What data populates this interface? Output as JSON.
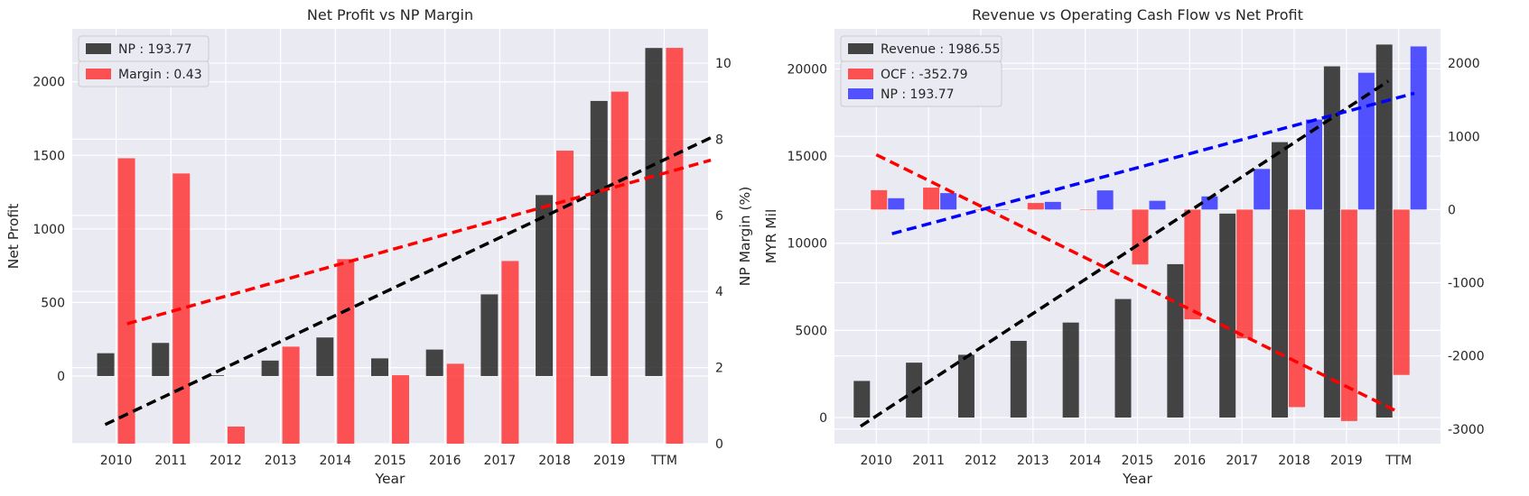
{
  "chart_data": [
    {
      "type": "bar",
      "title": "Net Profit vs NP Margin",
      "xlabel": "Year",
      "ylabel": "Net Profit",
      "ylabel_right": "NP Margin (%)",
      "categories": [
        "2010",
        "2011",
        "2012",
        "2013",
        "2014",
        "2015",
        "2016",
        "2017",
        "2018",
        "2019",
        "TTM"
      ],
      "ylim": [
        -460,
        2360
      ],
      "ylim_right": [
        0,
        10.9
      ],
      "yticks": [
        0,
        500,
        1000,
        1500,
        2000
      ],
      "yticks_right": [
        0,
        2,
        4,
        6,
        8,
        10
      ],
      "grid": true,
      "legend": "top-left",
      "series": [
        {
          "name": "NP : 193.77",
          "axis": "left",
          "color": "#262626",
          "values": [
            155,
            225,
            5,
            105,
            262,
            120,
            180,
            555,
            1230,
            1870,
            2230
          ]
        },
        {
          "name": "Margin : 0.43",
          "axis": "right",
          "color": "#ff2a2a",
          "values": [
            7.5,
            7.1,
            0.45,
            2.55,
            4.85,
            1.8,
            2.1,
            4.8,
            7.7,
            9.25,
            10.4
          ]
        }
      ],
      "trendlines": [
        {
          "axis": "left",
          "color": "#000000",
          "from": [
            -0.2,
            -330
          ],
          "to": [
            10.85,
            1620
          ]
        },
        {
          "axis": "right",
          "color": "#ff0000",
          "from": [
            0.2,
            3.15
          ],
          "to": [
            10.85,
            7.45
          ]
        }
      ]
    },
    {
      "type": "bar",
      "title": "Revenue vs Operating Cash Flow vs Net Profit",
      "xlabel": "Year",
      "ylabel": "MYR Mil",
      "categories": [
        "2010",
        "2011",
        "2012",
        "2013",
        "2014",
        "2015",
        "2016",
        "2017",
        "2018",
        "2019",
        "TTM"
      ],
      "ylim": [
        -1500,
        22300
      ],
      "ylim_right": [
        -3200,
        2470
      ],
      "yticks": [
        0,
        5000,
        10000,
        15000,
        20000
      ],
      "yticks_right": [
        -3000,
        -2000,
        -1000,
        0,
        1000,
        2000
      ],
      "grid": true,
      "legend": "top-left",
      "series": [
        {
          "name": "Revenue : 1986.55",
          "axis": "left",
          "color": "#262626",
          "values": [
            2100,
            3150,
            3600,
            4400,
            5450,
            6800,
            8800,
            11700,
            15800,
            20150,
            21400
          ]
        },
        {
          "name": "OCF : -352.79",
          "axis": "right",
          "color": "#ff2a2a",
          "values": [
            265,
            300,
            0,
            90,
            0,
            -750,
            -1500,
            -1760,
            -2700,
            -2890,
            -2260
          ]
        },
        {
          "name": "NP : 193.77",
          "axis": "right",
          "color": "#2a2aff",
          "values": [
            155,
            225,
            5,
            105,
            262,
            120,
            180,
            555,
            1230,
            1870,
            2230
          ]
        }
      ],
      "trendlines": [
        {
          "axis": "left",
          "color": "#000000",
          "from": [
            -0.3,
            -500
          ],
          "to": [
            9.8,
            19300
          ]
        },
        {
          "axis": "right",
          "color": "#ff0000",
          "from": [
            0,
            750
          ],
          "to": [
            10,
            -2770
          ]
        },
        {
          "axis": "right",
          "color": "#0000ff",
          "from": [
            0.3,
            -330
          ],
          "to": [
            10.3,
            1590
          ]
        }
      ]
    }
  ]
}
